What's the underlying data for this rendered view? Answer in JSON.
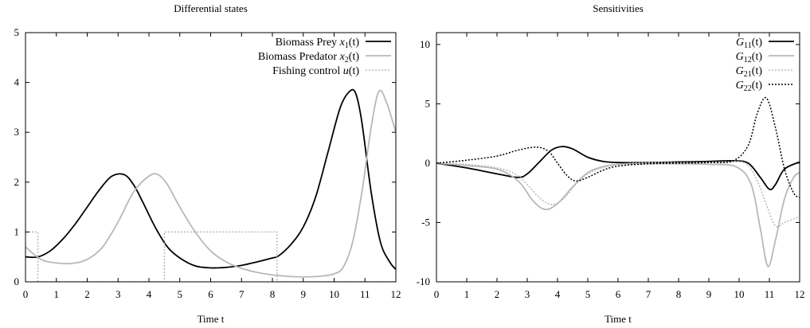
{
  "chart_data": [
    {
      "type": "line",
      "title": "Differential states",
      "xlabel": "Time t",
      "ylabel": "",
      "xlim": [
        0,
        12
      ],
      "ylim": [
        0,
        5
      ],
      "xticks": [
        "0",
        "1",
        "2",
        "3",
        "4",
        "5",
        "6",
        "7",
        "8",
        "9",
        "10",
        "11",
        "12"
      ],
      "yticks": [
        "0",
        "1",
        "2",
        "3",
        "4",
        "5"
      ],
      "legend_position": "top-right",
      "series": [
        {
          "name": "Biomass Prey x1(t)",
          "legend_label": "Biomass Prey",
          "legend_var": "x",
          "legend_sub": "1",
          "legend_arg": "(t)",
          "color": "#000000",
          "dash": "",
          "x": [
            0,
            0.4,
            0.8,
            1.2,
            1.6,
            2.0,
            2.4,
            2.8,
            3.2,
            3.5,
            3.8,
            4.2,
            4.6,
            5.0,
            5.5,
            6.0,
            6.5,
            7.0,
            7.5,
            8.0,
            8.2,
            8.6,
            9.0,
            9.4,
            9.8,
            10.2,
            10.5,
            10.7,
            10.9,
            11.2,
            11.5,
            11.8,
            12.0
          ],
          "y": [
            0.5,
            0.5,
            0.62,
            0.85,
            1.15,
            1.5,
            1.85,
            2.12,
            2.15,
            1.95,
            1.6,
            1.1,
            0.7,
            0.48,
            0.32,
            0.28,
            0.29,
            0.33,
            0.4,
            0.48,
            0.52,
            0.75,
            1.1,
            1.7,
            2.6,
            3.5,
            3.82,
            3.78,
            3.2,
            1.8,
            0.8,
            0.4,
            0.25
          ]
        },
        {
          "name": "Biomass Predator x2(t)",
          "legend_label": "Biomass Predator",
          "legend_var": "x",
          "legend_sub": "2",
          "legend_arg": "(t)",
          "color": "#b8b8b8",
          "dash": "",
          "x": [
            0,
            0.5,
            1.0,
            1.5,
            2.0,
            2.5,
            3.0,
            3.5,
            4.0,
            4.3,
            4.6,
            5.0,
            5.5,
            6.0,
            6.5,
            7.0,
            7.5,
            8.0,
            8.5,
            9.0,
            9.5,
            10.0,
            10.3,
            10.6,
            10.9,
            11.2,
            11.45,
            11.7,
            12.0
          ],
          "y": [
            0.7,
            0.45,
            0.38,
            0.37,
            0.45,
            0.7,
            1.2,
            1.8,
            2.12,
            2.15,
            1.95,
            1.5,
            1.0,
            0.62,
            0.4,
            0.27,
            0.19,
            0.14,
            0.11,
            0.1,
            0.11,
            0.16,
            0.3,
            0.8,
            1.8,
            3.1,
            3.82,
            3.6,
            3.0
          ]
        },
        {
          "name": "Fishing control u(t)",
          "legend_label": "Fishing control",
          "legend_var": "u",
          "legend_sub": "",
          "legend_arg": "(t)",
          "color": "#b8b8b8",
          "dash": "2,2",
          "x": [
            0,
            0.4,
            0.4,
            4.5,
            4.5,
            8.15,
            8.15,
            12
          ],
          "y": [
            1,
            1,
            0,
            0,
            1,
            1,
            0,
            0
          ]
        }
      ]
    },
    {
      "type": "line",
      "title": "Sensitivities",
      "xlabel": "Time t",
      "ylabel": "",
      "xlim": [
        0,
        12
      ],
      "ylim": [
        -10,
        11
      ],
      "xticks": [
        "0",
        "1",
        "2",
        "3",
        "4",
        "5",
        "6",
        "7",
        "8",
        "9",
        "10",
        "11",
        "12"
      ],
      "yticks": [
        "-10",
        "-5",
        "0",
        "5",
        "10"
      ],
      "legend_position": "top-right",
      "series": [
        {
          "name": "G11(t)",
          "legend_label": "",
          "legend_var": "G",
          "legend_sub": "11",
          "legend_arg": "(t)",
          "color": "#000000",
          "dash": "",
          "x": [
            0,
            1.0,
            2.0,
            2.7,
            3.0,
            3.4,
            3.8,
            4.15,
            4.5,
            5.0,
            5.5,
            6.0,
            7.0,
            8.0,
            9.0,
            9.8,
            10.3,
            10.7,
            11.0,
            11.2,
            11.5,
            12.0
          ],
          "y": [
            0,
            -0.4,
            -0.9,
            -1.2,
            -0.9,
            0.1,
            1.1,
            1.4,
            1.2,
            0.5,
            0.15,
            0.05,
            0.05,
            0.1,
            0.15,
            0.2,
            0.0,
            -1.2,
            -2.2,
            -1.8,
            -0.5,
            0.1
          ]
        },
        {
          "name": "G12(t)",
          "legend_label": "",
          "legend_var": "G",
          "legend_sub": "12",
          "legend_arg": "(t)",
          "color": "#b8b8b8",
          "dash": "",
          "x": [
            0,
            1.0,
            2.0,
            2.7,
            3.2,
            3.6,
            4.0,
            4.5,
            5.0,
            5.5,
            6.0,
            7.0,
            8.0,
            9.0,
            9.9,
            10.4,
            10.7,
            10.95,
            11.2,
            11.5,
            11.8,
            12.0
          ],
          "y": [
            0,
            -0.2,
            -0.5,
            -1.5,
            -3.2,
            -3.9,
            -3.4,
            -2.0,
            -0.8,
            -0.3,
            -0.1,
            -0.05,
            -0.05,
            -0.1,
            -0.3,
            -1.8,
            -5.5,
            -8.7,
            -6.5,
            -3.0,
            -1.2,
            -0.8
          ]
        },
        {
          "name": "G21(t)",
          "legend_label": "",
          "legend_var": "G",
          "legend_sub": "21",
          "legend_arg": "(t)",
          "color": "#b8b8b8",
          "dash": "2,2",
          "x": [
            0,
            1.0,
            2.0,
            2.6,
            3.0,
            3.4,
            3.8,
            4.2,
            4.6,
            5.0,
            5.6,
            6.5,
            7.5,
            8.5,
            9.5,
            10.2,
            10.6,
            10.9,
            11.2,
            11.5,
            12.0
          ],
          "y": [
            0,
            -0.1,
            -0.4,
            -0.9,
            -1.8,
            -2.9,
            -3.5,
            -3.0,
            -1.8,
            -0.9,
            -0.3,
            0.0,
            0.05,
            0.05,
            0.1,
            0.0,
            -1.5,
            -3.5,
            -5.3,
            -5.0,
            -4.5
          ]
        },
        {
          "name": "G22(t)",
          "legend_label": "",
          "legend_var": "G",
          "legend_sub": "22",
          "legend_arg": "(t)",
          "color": "#000000",
          "dash": "2,2",
          "x": [
            0,
            1.0,
            2.0,
            2.7,
            3.3,
            3.7,
            4.0,
            4.3,
            4.6,
            5.0,
            5.5,
            6.0,
            7.0,
            8.0,
            9.0,
            9.8,
            10.3,
            10.6,
            10.9,
            11.2,
            11.5,
            11.8,
            12.0
          ],
          "y": [
            0,
            0.25,
            0.6,
            1.1,
            1.35,
            1.0,
            0.0,
            -1.0,
            -1.5,
            -1.2,
            -0.6,
            -0.25,
            -0.05,
            0.0,
            0.05,
            0.2,
            1.5,
            4.2,
            5.5,
            3.0,
            -0.5,
            -2.5,
            -2.9
          ]
        }
      ]
    }
  ]
}
